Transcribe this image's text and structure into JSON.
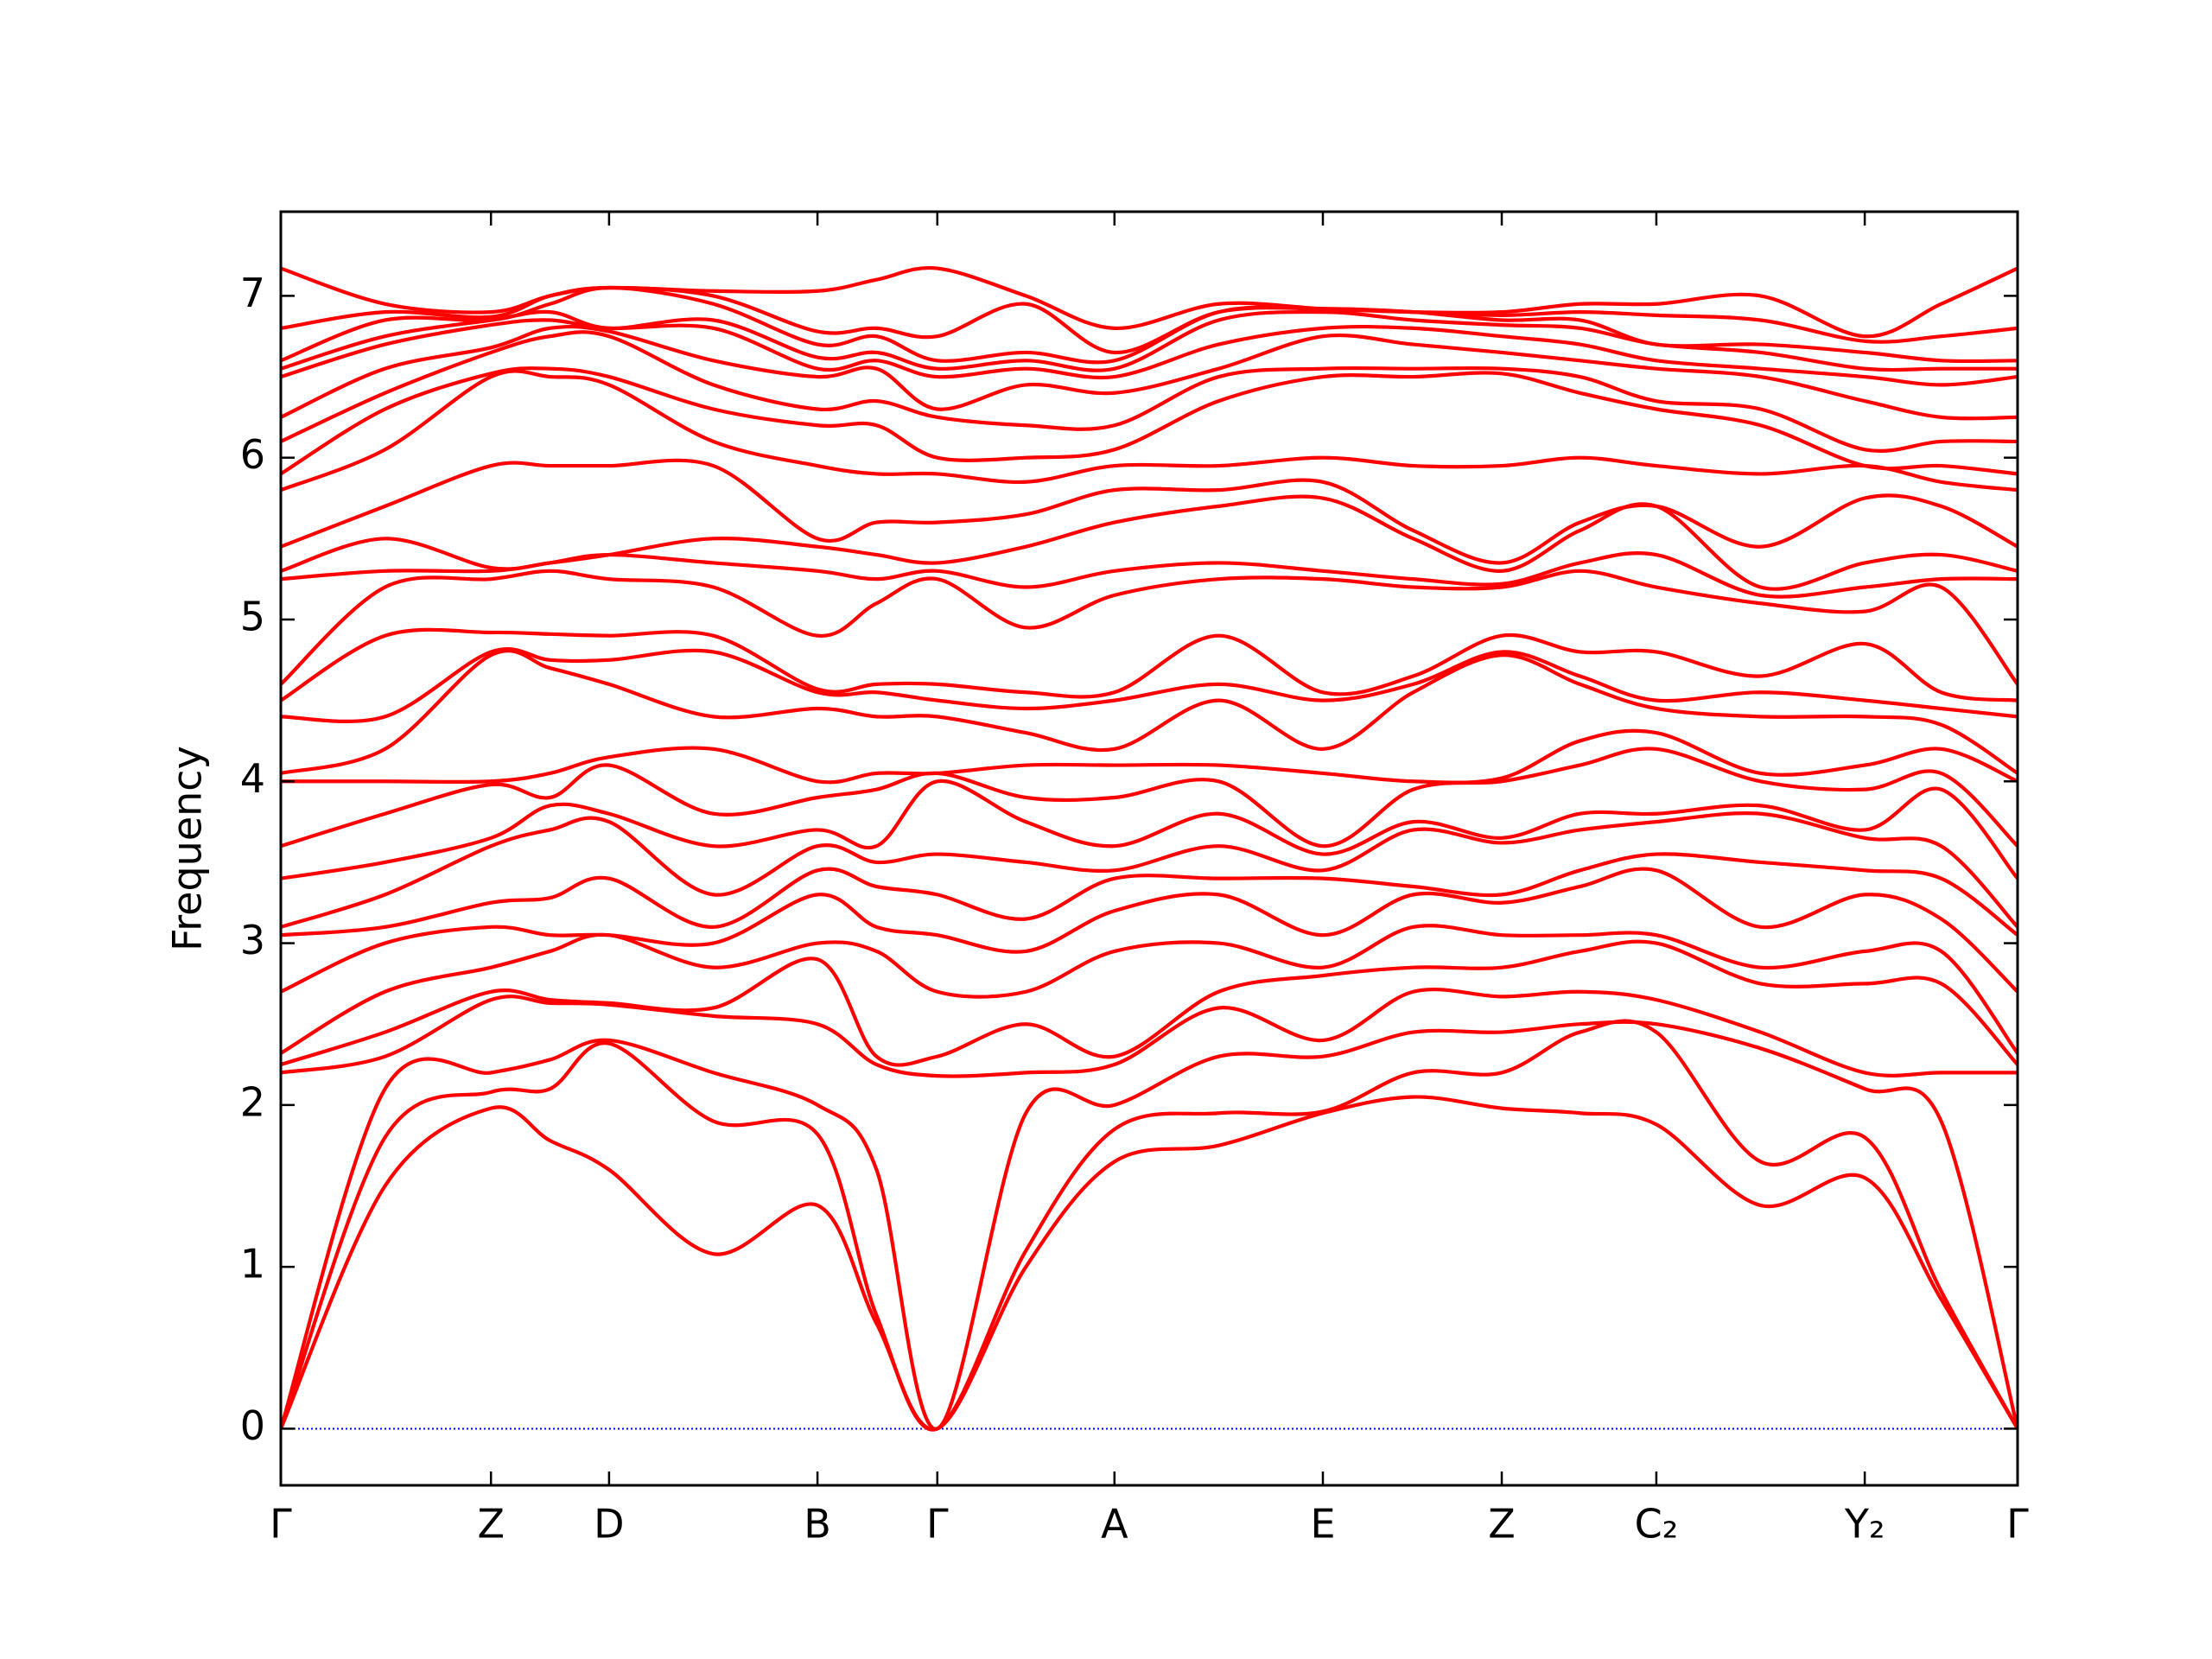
{
  "chart_data": {
    "type": "line",
    "ylabel": "Frequency",
    "color": "#ff0000",
    "hline": 0,
    "hline_color": "#0000ff",
    "xlim": [
      0,
      1
    ],
    "ylim": [
      -0.35,
      7.52
    ],
    "yticks": [
      0,
      1,
      2,
      3,
      4,
      5,
      6,
      7
    ],
    "xticks": [
      {
        "value": 0,
        "label": "Γ"
      },
      {
        "value": 0.121,
        "label": "Z"
      },
      {
        "value": 0.189,
        "label": "D"
      },
      {
        "value": 0.309,
        "label": "B"
      },
      {
        "value": 0.378,
        "label": "Γ"
      },
      {
        "value": 0.48,
        "label": "A"
      },
      {
        "value": 0.6,
        "label": "E"
      },
      {
        "value": 0.703,
        "label": "Z"
      },
      {
        "value": 0.792,
        "label": "C₂"
      },
      {
        "value": 0.912,
        "label": "Y₂"
      },
      {
        "value": 1,
        "label": "Γ"
      }
    ],
    "x": [
      0,
      0.06,
      0.121,
      0.155,
      0.189,
      0.249,
      0.309,
      0.343,
      0.378,
      0.429,
      0.48,
      0.54,
      0.6,
      0.652,
      0.703,
      0.748,
      0.792,
      0.852,
      0.912,
      0.956,
      1
    ],
    "series": [
      {
        "values": [
          0,
          1.5,
          1.98,
          1.78,
          1.6,
          1.08,
          1.38,
          0.65,
          0,
          1.0,
          1.65,
          1.75,
          1.95,
          2.05,
          1.98,
          1.95,
          1.88,
          1.38,
          1.55,
          0.8,
          0
        ]
      },
      {
        "values": [
          0,
          1.8,
          2.08,
          2.1,
          2.38,
          1.9,
          1.82,
          0.7,
          0,
          1.1,
          1.85,
          1.95,
          1.96,
          2.2,
          2.2,
          2.45,
          2.45,
          1.65,
          1.8,
          0.85,
          0
        ]
      },
      {
        "values": [
          0,
          2.1,
          2.2,
          2.28,
          2.4,
          2.2,
          2.0,
          1.6,
          0,
          1.95,
          2.0,
          2.3,
          2.3,
          2.45,
          2.45,
          2.5,
          2.5,
          2.35,
          2.1,
          1.9,
          0
        ]
      },
      {
        "values": [
          2.2,
          2.3,
          2.65,
          2.63,
          2.62,
          2.55,
          2.5,
          2.25,
          2.18,
          2.2,
          2.25,
          2.6,
          2.4,
          2.7,
          2.67,
          2.7,
          2.65,
          2.45,
          2.2,
          2.2,
          2.2
        ]
      },
      {
        "values": [
          2.25,
          2.45,
          2.7,
          2.65,
          2.63,
          2.6,
          2.9,
          2.3,
          2.3,
          2.5,
          2.3,
          2.7,
          2.8,
          2.85,
          2.85,
          2.95,
          3.0,
          2.75,
          2.75,
          2.75,
          2.25
        ]
      },
      {
        "values": [
          2.32,
          2.7,
          2.85,
          2.95,
          3.05,
          2.85,
          3.0,
          2.95,
          2.7,
          2.7,
          2.95,
          3.0,
          2.85,
          3.1,
          3.05,
          3.05,
          3.05,
          2.85,
          2.95,
          2.95,
          2.32
        ]
      },
      {
        "values": [
          2.7,
          3.0,
          3.1,
          3.05,
          3.05,
          3.0,
          3.3,
          3.1,
          3.05,
          2.95,
          3.2,
          3.3,
          3.05,
          3.3,
          3.25,
          3.35,
          3.45,
          3.1,
          3.3,
          3.15,
          2.7
        ]
      },
      {
        "values": [
          3.05,
          3.1,
          3.25,
          3.28,
          3.4,
          3.1,
          3.45,
          3.35,
          3.3,
          3.15,
          3.4,
          3.4,
          3.4,
          3.35,
          3.3,
          3.45,
          3.55,
          3.5,
          3.45,
          3.4,
          3.05
        ]
      },
      {
        "values": [
          3.1,
          3.3,
          3.6,
          3.7,
          3.75,
          3.3,
          3.6,
          3.5,
          3.55,
          3.5,
          3.45,
          3.6,
          3.45,
          3.7,
          3.62,
          3.7,
          3.75,
          3.8,
          3.65,
          3.6,
          3.1
        ]
      },
      {
        "values": [
          3.4,
          3.5,
          3.65,
          3.85,
          3.8,
          3.6,
          3.7,
          3.6,
          4.0,
          3.75,
          3.6,
          3.8,
          3.55,
          3.75,
          3.65,
          3.8,
          3.8,
          3.85,
          3.7,
          3.95,
          3.4
        ]
      },
      {
        "values": [
          3.6,
          3.8,
          3.98,
          3.9,
          4.1,
          3.8,
          3.9,
          3.95,
          4.05,
          3.9,
          3.9,
          4.0,
          3.6,
          3.95,
          4.0,
          4.1,
          4.2,
          4.0,
          3.95,
          4.05,
          3.6
        ]
      },
      {
        "values": [
          4.0,
          4.0,
          4.0,
          4.05,
          4.15,
          4.2,
          4.0,
          4.05,
          4.05,
          4.1,
          4.1,
          4.1,
          4.05,
          4.0,
          4.02,
          4.25,
          4.3,
          4.05,
          4.1,
          4.2,
          4.0
        ]
      },
      {
        "values": [
          4.05,
          4.2,
          4.78,
          4.7,
          4.6,
          4.4,
          4.45,
          4.4,
          4.4,
          4.3,
          4.2,
          4.5,
          4.2,
          4.55,
          4.78,
          4.6,
          4.45,
          4.4,
          4.4,
          4.35,
          4.05
        ]
      },
      {
        "values": [
          4.4,
          4.4,
          4.8,
          4.75,
          4.75,
          4.8,
          4.55,
          4.55,
          4.5,
          4.45,
          4.5,
          4.6,
          4.5,
          4.6,
          4.8,
          4.65,
          4.5,
          4.55,
          4.5,
          4.45,
          4.4
        ]
      },
      {
        "values": [
          4.5,
          4.9,
          4.92,
          4.91,
          4.9,
          4.9,
          4.57,
          4.6,
          4.6,
          4.55,
          4.55,
          4.9,
          4.55,
          4.65,
          4.9,
          4.8,
          4.8,
          4.65,
          4.85,
          4.55,
          4.5
        ]
      },
      {
        "values": [
          4.6,
          5.2,
          5.25,
          5.3,
          5.25,
          5.2,
          4.9,
          5.1,
          5.25,
          4.95,
          5.15,
          5.25,
          5.25,
          5.2,
          5.2,
          5.3,
          5.2,
          5.1,
          5.05,
          5.2,
          4.6
        ]
      },
      {
        "values": [
          5.25,
          5.3,
          5.3,
          5.35,
          5.4,
          5.35,
          5.3,
          5.25,
          5.3,
          5.2,
          5.3,
          5.35,
          5.3,
          5.25,
          5.22,
          5.35,
          5.4,
          5.15,
          5.2,
          5.25,
          5.25
        ]
      },
      {
        "values": [
          5.3,
          5.5,
          5.32,
          5.35,
          5.4,
          5.5,
          5.45,
          5.4,
          5.35,
          5.45,
          5.6,
          5.7,
          5.75,
          5.5,
          5.3,
          5.55,
          5.7,
          5.2,
          5.35,
          5.4,
          5.3
        ]
      },
      {
        "values": [
          5.45,
          5.7,
          5.95,
          5.95,
          5.95,
          5.95,
          5.5,
          5.6,
          5.6,
          5.65,
          5.8,
          5.8,
          5.85,
          5.55,
          5.35,
          5.6,
          5.7,
          5.45,
          5.75,
          5.7,
          5.45
        ]
      },
      {
        "values": [
          5.8,
          6.05,
          6.5,
          6.5,
          6.45,
          6.1,
          5.95,
          5.9,
          5.9,
          5.85,
          5.95,
          5.95,
          6.0,
          5.95,
          5.95,
          6.0,
          5.95,
          5.9,
          5.95,
          5.85,
          5.8
        ]
      },
      {
        "values": [
          5.9,
          6.3,
          6.52,
          6.55,
          6.5,
          6.3,
          6.2,
          6.2,
          6.0,
          6.0,
          6.05,
          6.35,
          6.5,
          6.5,
          6.52,
          6.4,
          6.3,
          6.2,
          5.95,
          5.95,
          5.9
        ]
      },
      {
        "values": [
          6.1,
          6.4,
          6.65,
          6.75,
          6.75,
          6.45,
          6.3,
          6.35,
          6.25,
          6.2,
          6.2,
          6.5,
          6.55,
          6.55,
          6.55,
          6.5,
          6.35,
          6.3,
          6.05,
          6.1,
          6.1
        ]
      },
      {
        "values": [
          6.25,
          6.55,
          6.68,
          6.8,
          6.78,
          6.6,
          6.5,
          6.55,
          6.3,
          6.45,
          6.4,
          6.55,
          6.75,
          6.7,
          6.65,
          6.6,
          6.55,
          6.5,
          6.35,
          6.25,
          6.25
        ]
      },
      {
        "values": [
          6.5,
          6.7,
          6.82,
          6.85,
          6.8,
          6.8,
          6.55,
          6.6,
          6.5,
          6.55,
          6.5,
          6.7,
          6.8,
          6.8,
          6.75,
          6.7,
          6.6,
          6.55,
          6.5,
          6.45,
          6.5
        ]
      },
      {
        "values": [
          6.55,
          6.75,
          6.85,
          6.9,
          6.8,
          6.85,
          6.62,
          6.65,
          6.55,
          6.6,
          6.55,
          6.85,
          6.9,
          6.85,
          6.82,
          6.8,
          6.7,
          6.65,
          6.55,
          6.55,
          6.55
        ]
      },
      {
        "values": [
          6.6,
          6.85,
          6.85,
          6.95,
          7.05,
          6.95,
          6.7,
          6.75,
          6.6,
          6.65,
          6.6,
          6.9,
          6.92,
          6.9,
          6.85,
          6.85,
          6.7,
          6.7,
          6.65,
          6.6,
          6.6
        ]
      },
      {
        "values": [
          6.8,
          6.9,
          6.87,
          7.0,
          7.05,
          7.0,
          6.78,
          6.8,
          6.75,
          6.95,
          6.65,
          6.9,
          6.92,
          6.9,
          6.88,
          6.9,
          6.88,
          6.85,
          6.72,
          6.75,
          6.8
        ]
      },
      {
        "values": [
          7.17,
          6.95,
          6.9,
          7.0,
          7.05,
          7.03,
          7.03,
          7.1,
          7.17,
          7.0,
          6.8,
          6.95,
          6.92,
          6.9,
          6.9,
          6.95,
          6.95,
          7.0,
          6.75,
          6.95,
          7.17
        ]
      }
    ]
  }
}
